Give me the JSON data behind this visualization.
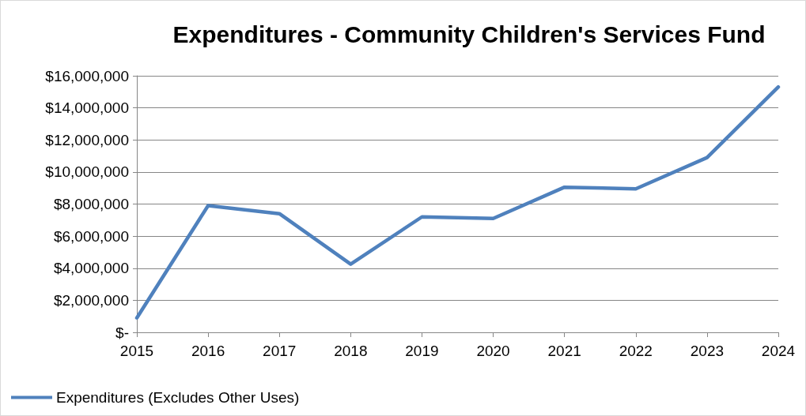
{
  "chart_data": {
    "type": "line",
    "title": "Expenditures - Community Children's Services Fund",
    "categories": [
      "2015",
      "2016",
      "2017",
      "2018",
      "2019",
      "2020",
      "2021",
      "2022",
      "2023",
      "2024"
    ],
    "series": [
      {
        "name": "Expenditures (Excludes Other Uses)",
        "color": "#4f81bd",
        "values": [
          900000,
          7900000,
          7400000,
          4250000,
          7200000,
          7100000,
          9050000,
          8950000,
          10900000,
          15300000
        ]
      }
    ],
    "ylim": [
      0,
      16000000
    ],
    "yticks": [
      {
        "value": 0,
        "label": "$-"
      },
      {
        "value": 2000000,
        "label": "$2,000,000"
      },
      {
        "value": 4000000,
        "label": "$4,000,000"
      },
      {
        "value": 6000000,
        "label": "$6,000,000"
      },
      {
        "value": 8000000,
        "label": "$8,000,000"
      },
      {
        "value": 10000000,
        "label": "$10,000,000"
      },
      {
        "value": 12000000,
        "label": "$12,000,000"
      },
      {
        "value": 14000000,
        "label": "$14,000,000"
      },
      {
        "value": 16000000,
        "label": "$16,000,000"
      }
    ],
    "grid": "y",
    "legend": "bottom left",
    "marker": "none",
    "line_style": "solid"
  }
}
